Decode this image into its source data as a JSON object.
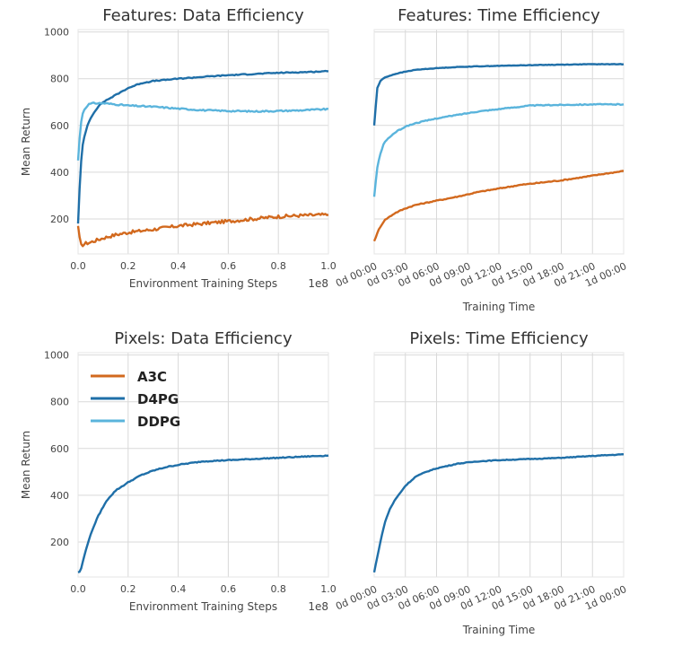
{
  "chart_data": [
    {
      "id": "features-data",
      "type": "line",
      "title": "Features: Data Efficiency",
      "xlabel": "Environment Training Steps",
      "ylabel": "Mean Return",
      "x_offset_label": "1e8",
      "xlim": [
        0,
        1.0
      ],
      "ylim": [
        50,
        1010
      ],
      "xticks": [
        0.0,
        0.2,
        0.4,
        0.6,
        0.8,
        1.0
      ],
      "xtick_labels": [
        "0.0",
        "0.2",
        "0.4",
        "0.6",
        "0.8",
        "1.0"
      ],
      "yticks": [
        200,
        400,
        600,
        800,
        1000
      ],
      "ytick_labels": [
        "200",
        "400",
        "600",
        "800",
        "1000"
      ],
      "grid": true,
      "series": [
        {
          "name": "A3C",
          "color": "#d2691e",
          "noise": 7,
          "x": [
            0,
            0.01,
            0.03,
            0.05,
            0.1,
            0.15,
            0.2,
            0.3,
            0.4,
            0.5,
            0.6,
            0.7,
            0.8,
            0.9,
            1.0
          ],
          "values": [
            170,
            85,
            95,
            100,
            118,
            132,
            142,
            155,
            170,
            180,
            190,
            200,
            210,
            215,
            218
          ]
        },
        {
          "name": "D4PG",
          "color": "#1f6fa8",
          "noise": 2,
          "x": [
            0,
            0.01,
            0.02,
            0.04,
            0.06,
            0.08,
            0.1,
            0.15,
            0.2,
            0.25,
            0.3,
            0.4,
            0.5,
            0.6,
            0.7,
            0.8,
            0.9,
            1.0
          ],
          "values": [
            180,
            420,
            530,
            610,
            650,
            680,
            700,
            730,
            760,
            780,
            790,
            800,
            808,
            815,
            820,
            825,
            828,
            832
          ]
        },
        {
          "name": "DDPG",
          "color": "#5ab4dc",
          "noise": 3,
          "x": [
            0,
            0.01,
            0.02,
            0.04,
            0.06,
            0.1,
            0.15,
            0.2,
            0.3,
            0.4,
            0.5,
            0.6,
            0.7,
            0.8,
            0.9,
            1.0
          ],
          "values": [
            450,
            600,
            660,
            690,
            695,
            695,
            690,
            685,
            680,
            672,
            665,
            662,
            660,
            662,
            665,
            670
          ]
        }
      ]
    },
    {
      "id": "features-time",
      "type": "line",
      "title": "Features: Time Efficiency",
      "xlabel": "Training Time",
      "ylabel": "",
      "xlim": [
        0,
        24
      ],
      "ylim": [
        50,
        1010
      ],
      "xticks": [
        0,
        3,
        6,
        9,
        12,
        15,
        18,
        21,
        24
      ],
      "xtick_labels": [
        "0d 00:00",
        "0d 03:00",
        "0d 06:00",
        "0d 09:00",
        "0d 12:00",
        "0d 15:00",
        "0d 18:00",
        "0d 21:00",
        "1d 00:00"
      ],
      "yticks": [
        200,
        400,
        600,
        800,
        1000
      ],
      "ytick_labels": [],
      "grid": true,
      "series": [
        {
          "name": "A3C",
          "color": "#d2691e",
          "noise": 2,
          "x": [
            0,
            0.5,
            1,
            2,
            3,
            4,
            6,
            8,
            10,
            12,
            14,
            16,
            18,
            20,
            22,
            24
          ],
          "values": [
            105,
            160,
            195,
            225,
            245,
            260,
            278,
            295,
            315,
            330,
            345,
            355,
            365,
            378,
            392,
            405
          ]
        },
        {
          "name": "D4PG",
          "color": "#1f6fa8",
          "noise": 1,
          "x": [
            0,
            0.3,
            0.6,
            1,
            2,
            3,
            4,
            6,
            8,
            10,
            12,
            15,
            18,
            21,
            24
          ],
          "values": [
            600,
            760,
            790,
            805,
            820,
            830,
            838,
            845,
            850,
            853,
            855,
            858,
            860,
            862,
            862
          ]
        },
        {
          "name": "DDPG",
          "color": "#5ab4dc",
          "noise": 2,
          "x": [
            0,
            0.3,
            0.6,
            1,
            2,
            3,
            4,
            6,
            8,
            10,
            12,
            15,
            18,
            21,
            24
          ],
          "values": [
            295,
            420,
            480,
            530,
            570,
            595,
            610,
            630,
            645,
            660,
            670,
            685,
            688,
            690,
            690
          ]
        }
      ]
    },
    {
      "id": "pixels-data",
      "type": "line",
      "title": "Pixels: Data Efficiency",
      "xlabel": "Environment Training Steps",
      "ylabel": "Mean Return",
      "x_offset_label": "1e8",
      "xlim": [
        0,
        1.0
      ],
      "ylim": [
        50,
        1010
      ],
      "xticks": [
        0.0,
        0.2,
        0.4,
        0.6,
        0.8,
        1.0
      ],
      "xtick_labels": [
        "0.0",
        "0.2",
        "0.4",
        "0.6",
        "0.8",
        "1.0"
      ],
      "yticks": [
        200,
        400,
        600,
        800,
        1000
      ],
      "ytick_labels": [
        "200",
        "400",
        "600",
        "800",
        "1000"
      ],
      "grid": true,
      "legend": {
        "placement": "upper-left",
        "entries": [
          {
            "label": "A3C",
            "color": "#d2691e"
          },
          {
            "label": "D4PG",
            "color": "#1f6fa8"
          },
          {
            "label": "DDPG",
            "color": "#5ab4dc"
          }
        ]
      },
      "series": [
        {
          "name": "D4PG",
          "color": "#1f6fa8",
          "noise": 2,
          "x": [
            0,
            0.01,
            0.02,
            0.04,
            0.06,
            0.08,
            0.1,
            0.12,
            0.15,
            0.2,
            0.25,
            0.3,
            0.35,
            0.4,
            0.5,
            0.6,
            0.7,
            0.8,
            0.9,
            1.0
          ],
          "values": [
            70,
            75,
            120,
            200,
            260,
            310,
            350,
            385,
            420,
            455,
            485,
            505,
            520,
            530,
            545,
            550,
            555,
            560,
            565,
            570
          ]
        }
      ]
    },
    {
      "id": "pixels-time",
      "type": "line",
      "title": "Pixels: Time Efficiency",
      "xlabel": "Training Time",
      "ylabel": "",
      "xlim": [
        0,
        24
      ],
      "ylim": [
        50,
        1010
      ],
      "xticks": [
        0,
        3,
        6,
        9,
        12,
        15,
        18,
        21,
        24
      ],
      "xtick_labels": [
        "0d 00:00",
        "0d 03:00",
        "0d 06:00",
        "0d 09:00",
        "0d 12:00",
        "0d 15:00",
        "0d 18:00",
        "0d 21:00",
        "1d 00:00"
      ],
      "yticks": [
        200,
        400,
        600,
        800,
        1000
      ],
      "ytick_labels": [],
      "grid": true,
      "series": [
        {
          "name": "D4PG",
          "color": "#1f6fa8",
          "noise": 1.5,
          "x": [
            0,
            0.5,
            1,
            1.5,
            2,
            3,
            4,
            5,
            6,
            8,
            10,
            12,
            15,
            18,
            21,
            24
          ],
          "values": [
            70,
            180,
            280,
            340,
            380,
            440,
            480,
            500,
            515,
            535,
            545,
            550,
            555,
            560,
            568,
            575
          ]
        }
      ]
    }
  ]
}
